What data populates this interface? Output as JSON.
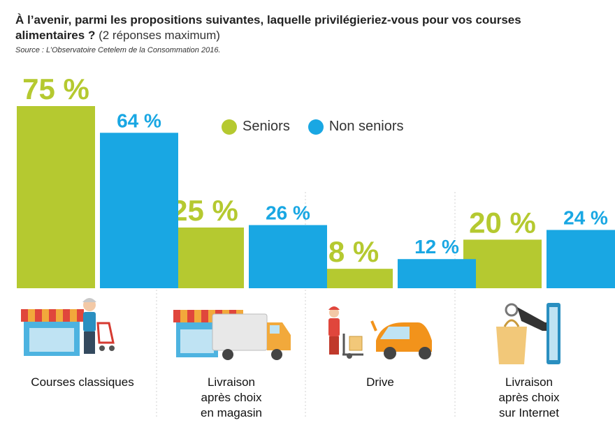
{
  "header": {
    "title": "À l’avenir, parmi les propositions suivantes, laquelle privilégieriez-vous pour vos courses alimentaires ?",
    "subtitle": "(2 réponses maximum)",
    "source": "Source : L’Observatoire Cetelem de la Consommation 2016."
  },
  "legend": {
    "seniors": "Seniors",
    "non_seniors": "Non seniors"
  },
  "colors": {
    "seniors": "#b5c930",
    "non_seniors": "#19a7e3",
    "divider": "#d0d0d0"
  },
  "chart_data": {
    "type": "bar",
    "title": "À l’avenir, parmi les propositions suivantes, laquelle privilégieriez-vous pour vos courses alimentaires ?",
    "categories": [
      "Courses classiques",
      "Livraison après choix en magasin",
      "Drive",
      "Livraison après choix sur Internet"
    ],
    "series": [
      {
        "name": "Seniors",
        "values": [
          75,
          25,
          8,
          20
        ],
        "labels": [
          "75 %",
          "25 %",
          "8 %",
          "20 %"
        ]
      },
      {
        "name": "Non seniors",
        "values": [
          64,
          26,
          12,
          24
        ],
        "labels": [
          "64 %",
          "26 %",
          "12 %",
          "24 %"
        ]
      }
    ],
    "ylim": [
      0,
      75
    ],
    "xlabel": "",
    "ylabel": ""
  },
  "categories_text": [
    {
      "line1": "Courses classiques",
      "line2": "",
      "line3": ""
    },
    {
      "line1": "Livraison",
      "line2": "après choix",
      "line3": "en magasin"
    },
    {
      "line1": "Drive",
      "line2": "",
      "line3": ""
    },
    {
      "line1": "Livraison",
      "line2": "après choix",
      "line3": "sur Internet"
    }
  ],
  "icons": [
    "shop-shopper-icon",
    "shop-delivery-truck-icon",
    "drive-car-icon",
    "internet-delivery-icon"
  ]
}
